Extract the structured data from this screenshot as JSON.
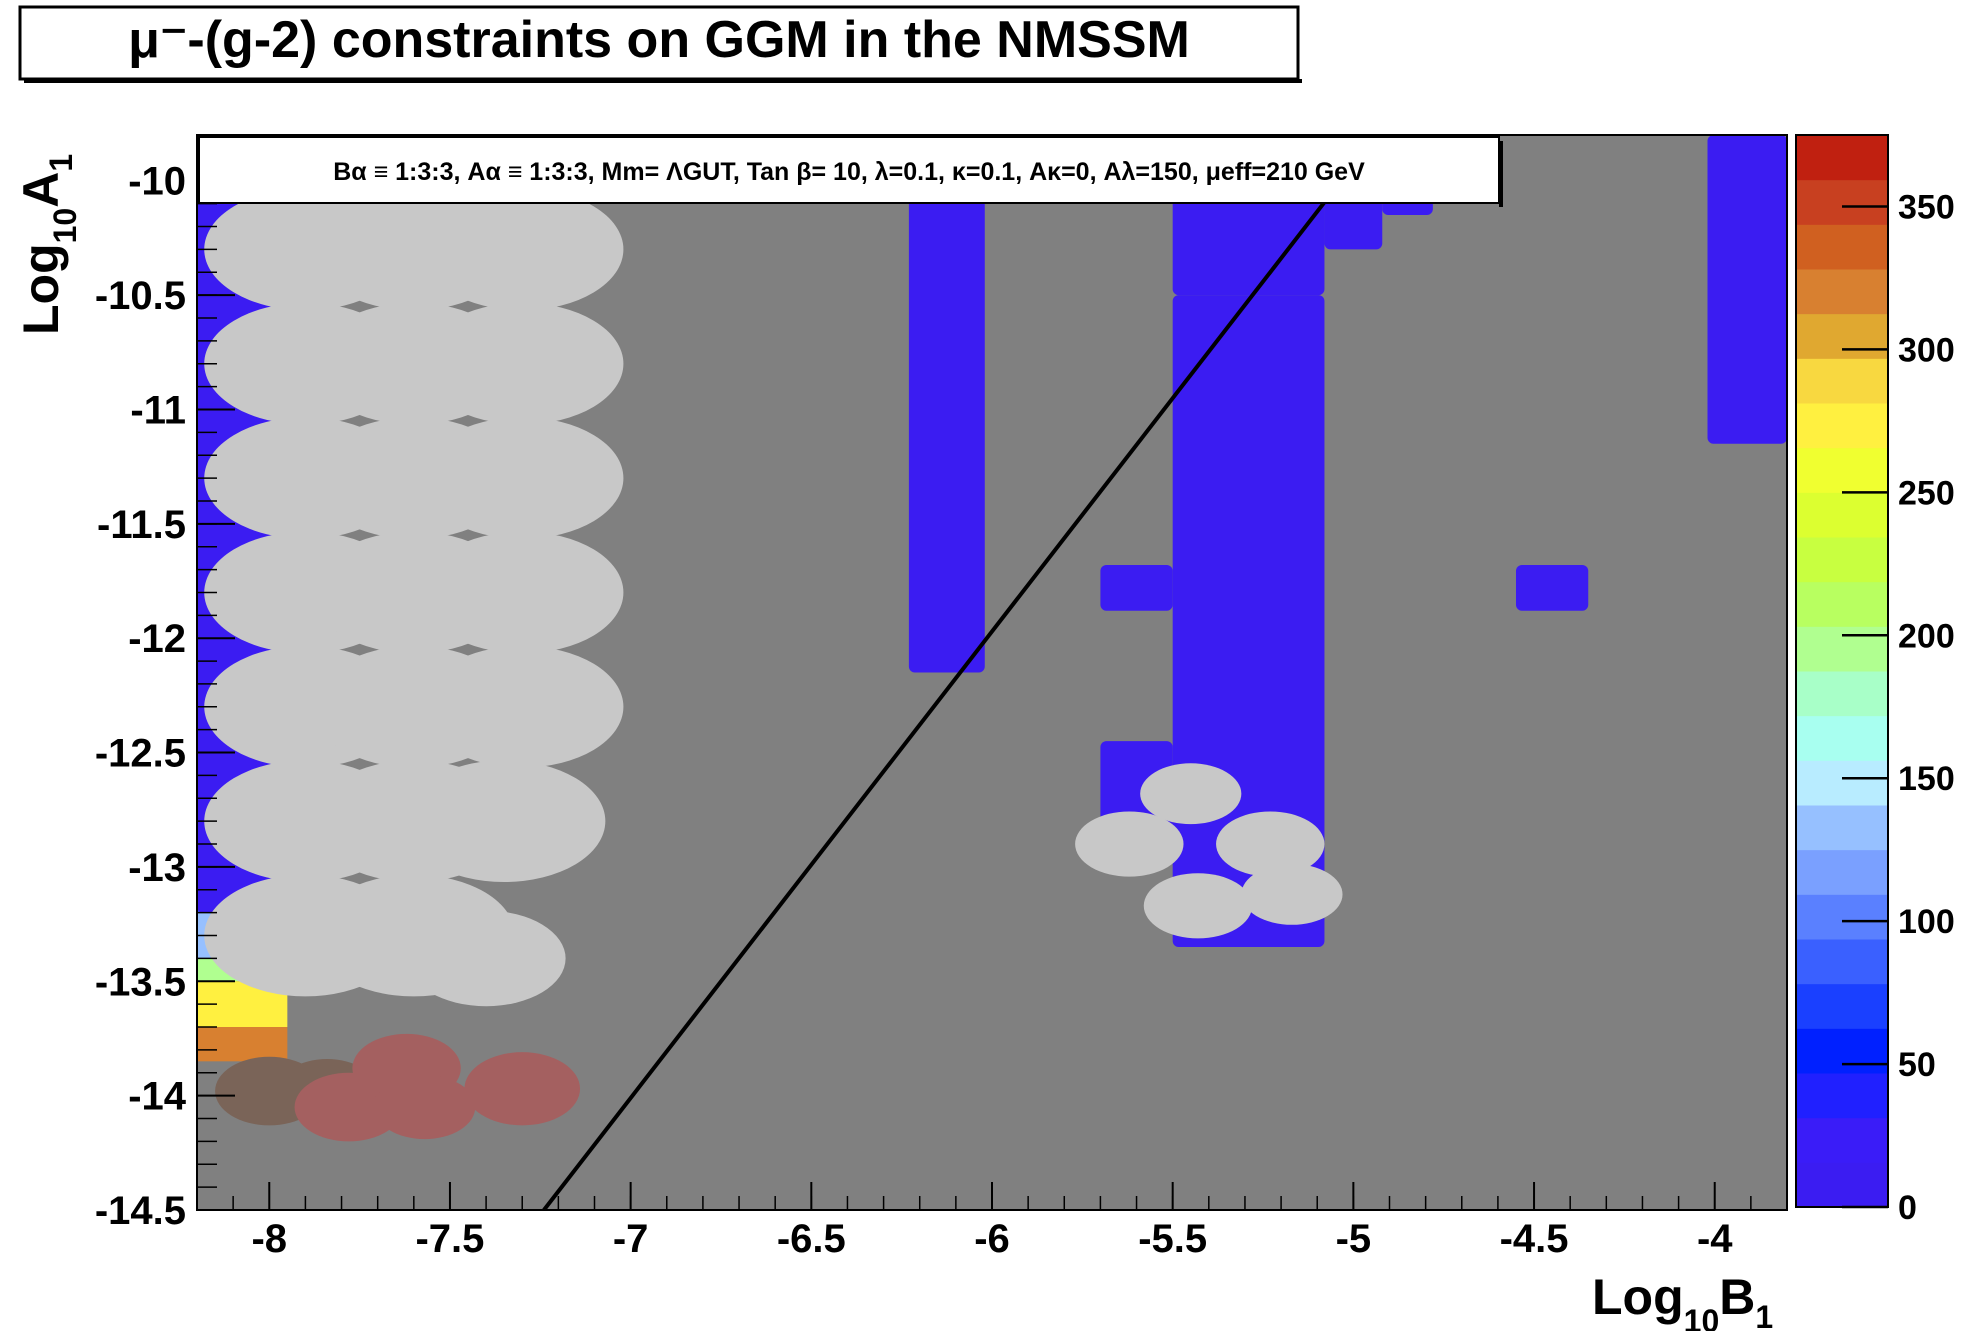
{
  "chart_data": {
    "type": "heatmap",
    "title": "μ⁻-(g-2) constraints on GGM in the NMSSM",
    "xlabel": "Log10B1",
    "xlabel_parts": {
      "main": "Log",
      "sub": "10",
      "var": "B",
      "varsub": "1"
    },
    "ylabel": "Log10A1",
    "ylabel_parts": {
      "main": "Log",
      "sub": "10",
      "var": "A",
      "varsub": "1"
    },
    "xlim": [
      -8.2,
      -3.8
    ],
    "ylim": [
      -14.5,
      -9.8
    ],
    "x_ticks": [
      -8,
      -7.5,
      -7,
      -6.5,
      -6,
      -5.5,
      -5,
      -4.5,
      -4
    ],
    "x_tick_labels": [
      "-8",
      "-7.5",
      "-7",
      "-6.5",
      "-6",
      "-5.5",
      "-5",
      "-4.5",
      "-4"
    ],
    "y_ticks": [
      -10,
      -10.5,
      -11,
      -11.5,
      -12,
      -12.5,
      -13,
      -13.5,
      -14,
      -14.5
    ],
    "y_tick_labels": [
      "-10",
      "-10.5",
      "-11",
      "-11.5",
      "-12",
      "-12.5",
      "-13",
      "-13.5",
      "-14",
      "-14.5"
    ],
    "annotation": "Bα ≡ 1:3:3, Aα ≡ 1:3:3, Mm= ΛGUT, Tan β= 10, λ=0.1, κ=0.1, Aκ=0, Aλ=150, μeff=210 GeV",
    "colorbar": {
      "min": 0,
      "max": 375,
      "ticks": [
        0,
        50,
        100,
        150,
        200,
        250,
        300,
        350
      ],
      "tick_labels": [
        "0",
        "50",
        "100",
        "150",
        "200",
        "250",
        "300",
        "350"
      ],
      "levels": [
        "#3b1cf2",
        "#3a1cf8",
        "#2020ff",
        "#0020ff",
        "#1a40ff",
        "#3a60ff",
        "#5a80ff",
        "#7aa0ff",
        "#96c0ff",
        "#b8ecff",
        "#a8fff0",
        "#a8ffc8",
        "#b0ff90",
        "#b8ff60",
        "#c8ff40",
        "#dcff30",
        "#f0ff30",
        "#fff040",
        "#f8d840",
        "#e0a830",
        "#d88030",
        "#d06020",
        "#c84020",
        "#c02010"
      ]
    },
    "background_color": "#808080",
    "excluded_color": "#c8c8c8",
    "line": {
      "color": "#000000",
      "points": [
        [
          -7.24,
          -14.5
        ],
        [
          -4.98,
          -9.89
        ]
      ]
    },
    "blue_regions": [
      {
        "x": [
          -8.2,
          -7.95
        ],
        "y": [
          -13.2,
          -9.9
        ]
      },
      {
        "x": [
          -6.23,
          -6.02
        ],
        "y": [
          -12.15,
          -10.05
        ]
      },
      {
        "x": [
          -5.5,
          -5.08
        ],
        "y": [
          -10.5,
          -10.05
        ]
      },
      {
        "x": [
          -5.08,
          -4.92
        ],
        "y": [
          -10.3,
          -10.05
        ]
      },
      {
        "x": [
          -4.92,
          -4.78
        ],
        "y": [
          -10.15,
          -10.05
        ]
      },
      {
        "x": [
          -5.5,
          -5.08
        ],
        "y": [
          -13.35,
          -10.5
        ]
      },
      {
        "x": [
          -5.7,
          -5.5
        ],
        "y": [
          -11.88,
          -11.68
        ]
      },
      {
        "x": [
          -5.7,
          -5.5
        ],
        "y": [
          -12.85,
          -12.45
        ]
      },
      {
        "x": [
          -4.55,
          -4.35
        ],
        "y": [
          -11.88,
          -11.68
        ]
      },
      {
        "x": [
          -4.02,
          -3.8
        ],
        "y": [
          -11.15,
          -9.8
        ]
      }
    ],
    "strip_colors": [
      {
        "y": [
          -13.2,
          -13.0
        ],
        "value": 90
      },
      {
        "y": [
          -13.4,
          -13.2
        ],
        "value": 140
      },
      {
        "y": [
          -13.5,
          -13.4
        ],
        "value": 190
      },
      {
        "y": [
          -13.7,
          -13.5
        ],
        "value": 280
      },
      {
        "y": [
          -13.85,
          -13.7
        ],
        "value": 320
      }
    ],
    "light_gray_blobs": [
      {
        "x": -7.9,
        "y": -9.9,
        "r": 0.25
      },
      {
        "x": -7.6,
        "y": -9.9,
        "r": 0.25
      },
      {
        "x": -7.9,
        "y": -10.3,
        "r": 0.28
      },
      {
        "x": -7.6,
        "y": -10.3,
        "r": 0.28
      },
      {
        "x": -7.3,
        "y": -10.3,
        "r": 0.28
      },
      {
        "x": -7.9,
        "y": -10.8,
        "r": 0.28
      },
      {
        "x": -7.6,
        "y": -10.8,
        "r": 0.28
      },
      {
        "x": -7.3,
        "y": -10.8,
        "r": 0.28
      },
      {
        "x": -7.9,
        "y": -11.3,
        "r": 0.28
      },
      {
        "x": -7.6,
        "y": -11.3,
        "r": 0.28
      },
      {
        "x": -7.3,
        "y": -11.3,
        "r": 0.28
      },
      {
        "x": -7.9,
        "y": -11.8,
        "r": 0.28
      },
      {
        "x": -7.6,
        "y": -11.8,
        "r": 0.28
      },
      {
        "x": -7.3,
        "y": -11.8,
        "r": 0.28
      },
      {
        "x": -7.9,
        "y": -12.3,
        "r": 0.28
      },
      {
        "x": -7.6,
        "y": -12.3,
        "r": 0.28
      },
      {
        "x": -7.3,
        "y": -12.3,
        "r": 0.28
      },
      {
        "x": -7.9,
        "y": -12.8,
        "r": 0.28
      },
      {
        "x": -7.6,
        "y": -12.8,
        "r": 0.28
      },
      {
        "x": -7.35,
        "y": -12.8,
        "r": 0.28
      },
      {
        "x": -7.9,
        "y": -13.3,
        "r": 0.28
      },
      {
        "x": -7.6,
        "y": -13.3,
        "r": 0.28
      },
      {
        "x": -7.4,
        "y": -13.4,
        "r": 0.22
      },
      {
        "x": -5.45,
        "y": -12.68,
        "r": 0.14
      },
      {
        "x": -5.62,
        "y": -12.9,
        "r": 0.15
      },
      {
        "x": -5.43,
        "y": -13.17,
        "r": 0.15
      },
      {
        "x": -5.23,
        "y": -12.9,
        "r": 0.15
      },
      {
        "x": -5.17,
        "y": -13.12,
        "r": 0.14
      }
    ],
    "brown_blobs": [
      {
        "x": -8.0,
        "y": -13.98,
        "r": 0.15,
        "color": "#7a6458"
      },
      {
        "x": -7.84,
        "y": -13.98,
        "r": 0.14,
        "color": "#7a6458"
      },
      {
        "x": -7.78,
        "y": -14.05,
        "r": 0.15,
        "color": "#a46060"
      },
      {
        "x": -7.62,
        "y": -13.88,
        "r": 0.15,
        "color": "#a46060"
      },
      {
        "x": -7.57,
        "y": -14.05,
        "r": 0.14,
        "color": "#a46060"
      },
      {
        "x": -7.3,
        "y": -13.97,
        "r": 0.16,
        "color": "#a46060"
      }
    ]
  }
}
